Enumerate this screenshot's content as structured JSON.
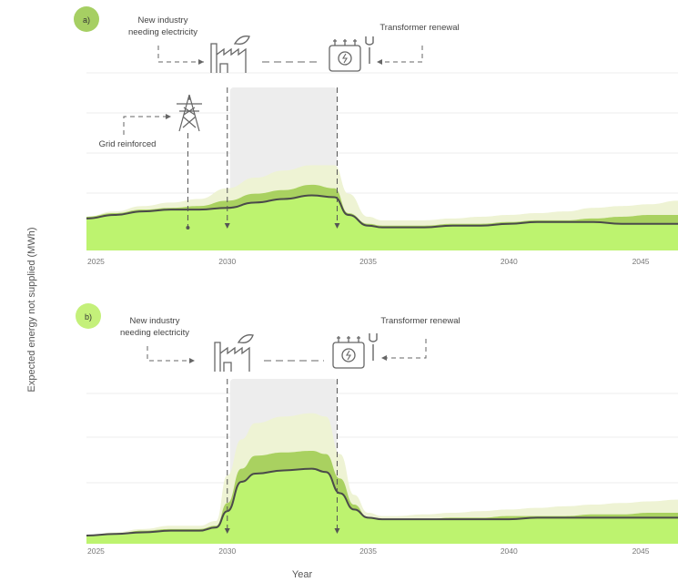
{
  "ylabel": "Expected energy not supplied (MWh)",
  "xlabel": "Year",
  "colors": {
    "upper_band": "#eef3d4",
    "middle_band": "#a9d160",
    "lower_fill": "#bdf36f",
    "median_line": "#4a4a4a",
    "window": "#ededed",
    "badge_a": "#a6cf63",
    "badge_b": "#c4f07a",
    "grid": "#ececec",
    "annotation": "#555555"
  },
  "icons": [
    "factory-icon",
    "transformer-wrench-icon",
    "pylon-icon"
  ],
  "chart_data": [
    {
      "type": "area",
      "panel": "a)",
      "x_ticks": [
        "2025",
        "2030",
        "2035",
        "2040",
        "2045"
      ],
      "xlim": [
        2025,
        2046
      ],
      "ylim": [
        0,
        100
      ],
      "grid": true,
      "highlight_window": [
        2030.1,
        2033.9
      ],
      "x": [
        2025,
        2026,
        2027,
        2028,
        2029,
        2030,
        2031,
        2032,
        2033,
        2033.8,
        2034.3,
        2035,
        2035.5,
        2036,
        2037,
        2038,
        2039,
        2040,
        2041,
        2042,
        2043,
        2044,
        2045,
        2046
      ],
      "series": [
        {
          "role": "upper_band",
          "values": [
            19,
            22,
            25,
            27,
            29,
            35,
            41,
            45,
            48,
            48,
            32,
            19,
            17,
            17,
            17,
            18,
            19,
            20,
            21,
            22,
            24,
            25,
            26,
            28
          ]
        },
        {
          "role": "middle_band",
          "values": [
            19,
            21,
            23,
            24,
            25,
            28,
            32,
            34,
            37,
            35,
            21,
            15,
            14,
            14,
            14,
            15,
            15,
            16,
            17,
            17,
            18,
            19,
            20,
            20
          ]
        },
        {
          "role": "median",
          "values": [
            18,
            20,
            22,
            23,
            23,
            24,
            27,
            29,
            31,
            30,
            20,
            14,
            13,
            13,
            13,
            14,
            14,
            15,
            16,
            16,
            16,
            15,
            15,
            15
          ]
        }
      ],
      "annotations": [
        {
          "text": "New industry needing electricity",
          "x": 2030.0,
          "icon": "factory-icon"
        },
        {
          "text": "Transformer renewal",
          "x": 2033.9,
          "icon": "transformer-wrench-icon"
        },
        {
          "text": "Grid reinforced",
          "x": 2028.6,
          "icon": "pylon-icon"
        }
      ]
    },
    {
      "type": "area",
      "panel": "b)",
      "x_ticks": [
        "2025",
        "2030",
        "2035",
        "2040",
        "2045"
      ],
      "xlim": [
        2025,
        2046
      ],
      "ylim": [
        0,
        100
      ],
      "grid": true,
      "highlight_window": [
        2030.1,
        2033.9
      ],
      "x": [
        2025,
        2026,
        2027,
        2028,
        2029,
        2029.6,
        2030,
        2030.5,
        2031,
        2032,
        2033,
        2033.5,
        2034,
        2034.5,
        2035,
        2035.5,
        2036,
        2037,
        2038,
        2039,
        2040,
        2041,
        2042,
        2043,
        2044,
        2045,
        2046
      ],
      "series": [
        {
          "role": "upper_band",
          "values": [
            5,
            7,
            9,
            11,
            11,
            14,
            42,
            64,
            74,
            78,
            80,
            78,
            55,
            30,
            19,
            17,
            17,
            18,
            19,
            20,
            21,
            22,
            23,
            24,
            25,
            26,
            27
          ]
        },
        {
          "role": "middle_band",
          "values": [
            5,
            6,
            8,
            9,
            9,
            11,
            25,
            46,
            54,
            56,
            57,
            55,
            40,
            24,
            16,
            15,
            15,
            15,
            16,
            16,
            17,
            17,
            17,
            18,
            18,
            19,
            19
          ]
        },
        {
          "role": "median",
          "values": [
            5,
            6,
            7,
            8,
            8,
            10,
            20,
            38,
            43,
            45,
            46,
            44,
            31,
            21,
            16,
            15,
            15,
            15,
            15,
            15,
            15,
            16,
            16,
            16,
            16,
            16,
            16
          ]
        }
      ],
      "annotations": [
        {
          "text": "New industry needing electricity",
          "x": 2030.0,
          "icon": "factory-icon"
        },
        {
          "text": "Transformer renewal",
          "x": 2033.9,
          "icon": "transformer-wrench-icon"
        }
      ]
    }
  ],
  "panels": [
    {
      "badge": "a)",
      "labels": {
        "industry_l1": "New industry",
        "industry_l2": "needing electricity",
        "transformer": "Transformer renewal",
        "grid": "Grid reinforced"
      }
    },
    {
      "badge": "b)",
      "labels": {
        "industry_l1": "New industry",
        "industry_l2": "needing electricity",
        "transformer": "Transformer renewal"
      }
    }
  ]
}
